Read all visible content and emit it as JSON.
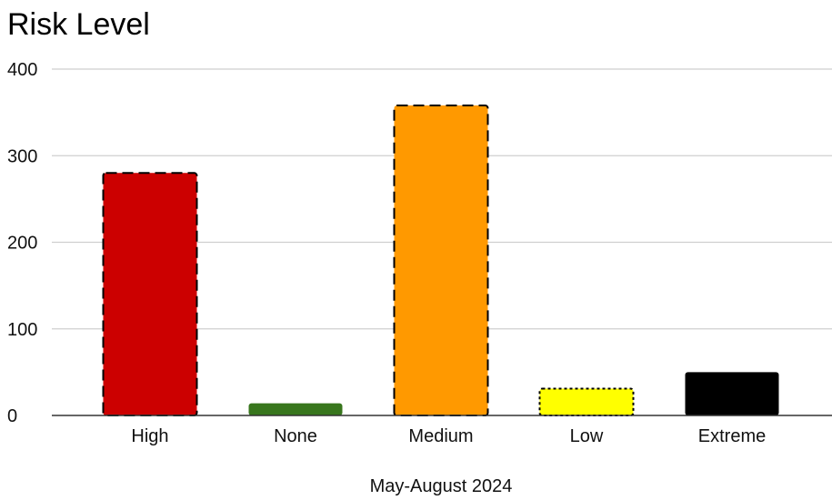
{
  "chart_data": {
    "type": "bar",
    "title": "Risk Level",
    "xlabel": "May-August 2024",
    "ylabel": "",
    "ylim": [
      0,
      400
    ],
    "yticks": [
      0,
      100,
      200,
      300,
      400
    ],
    "grid": true,
    "categories": [
      "High",
      "None",
      "Medium",
      "Low",
      "Extreme"
    ],
    "values": [
      280,
      14,
      358,
      31,
      50
    ],
    "colors": [
      "#cc0000",
      "#38761d",
      "#ff9900",
      "#ffff00",
      "#000000"
    ],
    "border_styles": [
      "dashed",
      "none",
      "dashed",
      "dotted",
      "none"
    ]
  }
}
